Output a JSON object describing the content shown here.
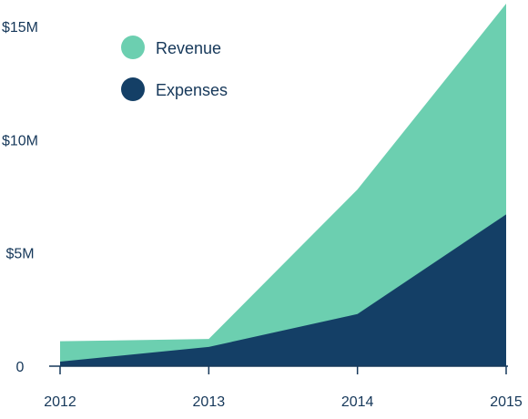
{
  "chart_data": {
    "type": "area",
    "stacked": false,
    "x": [
      2012,
      2013,
      2014,
      2015
    ],
    "xticks": [
      "2012",
      "2013",
      "2014",
      "2015"
    ],
    "yticks": [
      {
        "value": 0,
        "label": "0"
      },
      {
        "value": 5,
        "label": "$5M"
      },
      {
        "value": 10,
        "label": "$10M"
      },
      {
        "value": 15,
        "label": "$15M"
      }
    ],
    "ylim": [
      0,
      16
    ],
    "yunit": "$M",
    "grid": false,
    "legend_position": "top-left",
    "series": [
      {
        "name": "Revenue",
        "values": [
          1.1,
          1.2,
          7.8,
          16.0
        ],
        "color": "#6ccfb0"
      },
      {
        "name": "Expenses",
        "values": [
          0.2,
          0.85,
          2.3,
          6.7
        ],
        "color": "#143f66"
      }
    ],
    "title": "",
    "xlabel": "",
    "ylabel": ""
  }
}
